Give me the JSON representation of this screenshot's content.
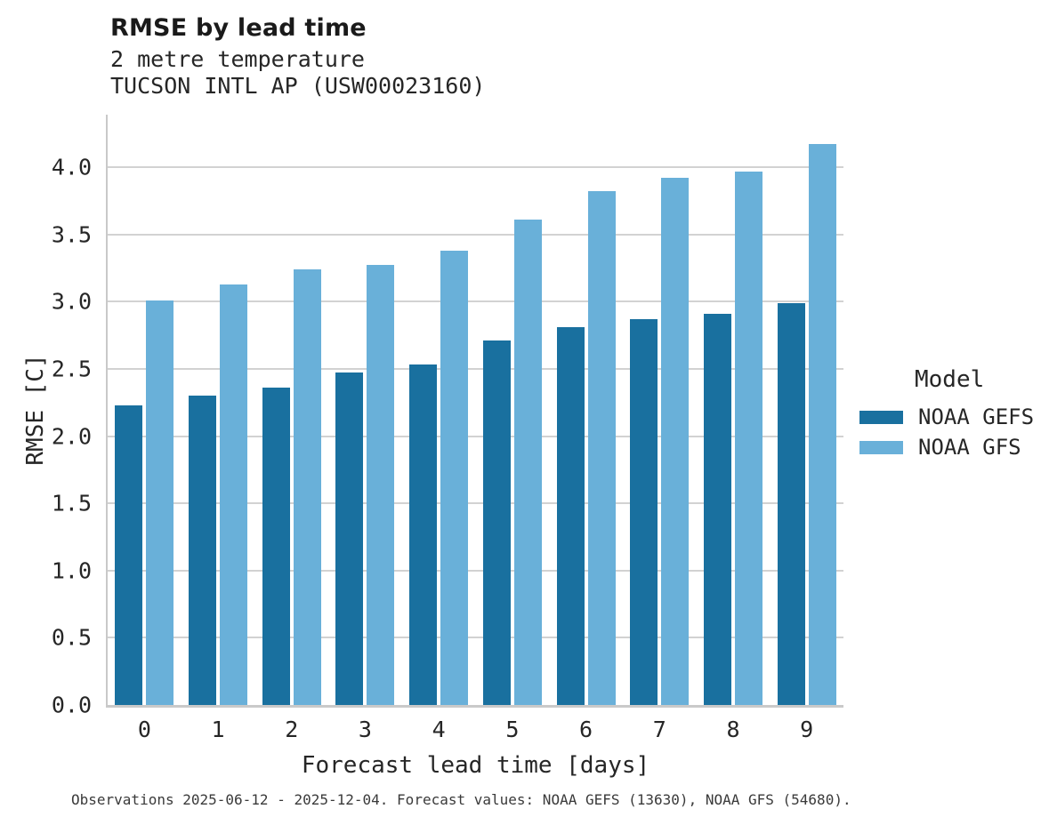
{
  "chart_data": {
    "type": "bar",
    "title": "RMSE by lead time",
    "subtitle": [
      "2 metre temperature",
      "TUCSON INTL AP (USW00023160)"
    ],
    "categories": [
      "0",
      "1",
      "2",
      "3",
      "4",
      "5",
      "6",
      "7",
      "8",
      "9"
    ],
    "series": [
      {
        "name": "NOAA GEFS",
        "color": "#19709F",
        "values": [
          2.23,
          2.3,
          2.36,
          2.47,
          2.53,
          2.71,
          2.81,
          2.87,
          2.91,
          2.99
        ]
      },
      {
        "name": "NOAA GFS",
        "color": "#69B0D9",
        "values": [
          3.01,
          3.13,
          3.24,
          3.27,
          3.38,
          3.61,
          3.82,
          3.92,
          3.97,
          4.17
        ]
      }
    ],
    "xlabel": "Forecast lead time [days]",
    "ylabel": "RMSE [C]",
    "ylim": [
      0,
      4.39
    ],
    "yticks": [
      0.0,
      0.5,
      1.0,
      1.5,
      2.0,
      2.5,
      3.0,
      3.5,
      4.0
    ],
    "grid": "horizontal",
    "legend_title": "Model",
    "legend_position": "right",
    "colors": {
      "gridline": "#d2d2d2",
      "spine": "#c9c9c9",
      "background": "#ffffff"
    }
  },
  "caption": "Observations 2025-06-12 - 2025-12-04. Forecast values: NOAA GEFS (13630), NOAA GFS (54680)."
}
